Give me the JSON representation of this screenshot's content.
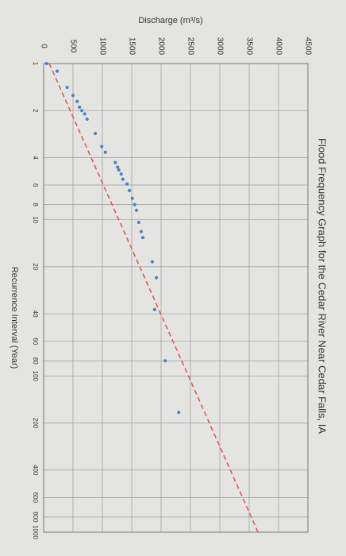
{
  "chart_data": {
    "type": "scatter",
    "title": "Flood Frequency Graph for the Cedar River Near Cedar Falls, IA",
    "x_label": "Recurrence Interval (Year)",
    "y_label": "Discharge (m³/s)",
    "x_log": true,
    "xlim": [
      1,
      1000
    ],
    "xticks": [
      1,
      2,
      4,
      6,
      8,
      10,
      20,
      40,
      60,
      80,
      100,
      200,
      400,
      600,
      800,
      1000
    ],
    "ylim": [
      0,
      4500
    ],
    "yticks": [
      0,
      500,
      1000,
      1500,
      2000,
      2500,
      3000,
      3500,
      4000,
      4500
    ],
    "grid": true,
    "series": [
      {
        "color": "#4a7fc0",
        "x": [
          1.0,
          1.12,
          1.42,
          1.6,
          1.75,
          1.9,
          2.0,
          2.1,
          2.27,
          2.8,
          3.4,
          3.7,
          4.3,
          4.6,
          4.8,
          5.1,
          5.5,
          5.9,
          6.5,
          7.3,
          8.0,
          8.7,
          10.4,
          11.9,
          13,
          18.6,
          23.5,
          37.6,
          80,
          171
        ],
        "values": [
          50,
          230,
          400,
          500,
          570,
          610,
          650,
          700,
          740,
          880,
          990,
          1050,
          1220,
          1260,
          1280,
          1320,
          1350,
          1420,
          1460,
          1510,
          1550,
          1580,
          1620,
          1660,
          1690,
          1850,
          1920,
          1890,
          2070,
          2300
        ]
      },
      {
        "type": "line",
        "color": "#d9534f",
        "dashed": true,
        "x": [
          1,
          1000
        ],
        "values": [
          95,
          3650
        ]
      }
    ]
  }
}
